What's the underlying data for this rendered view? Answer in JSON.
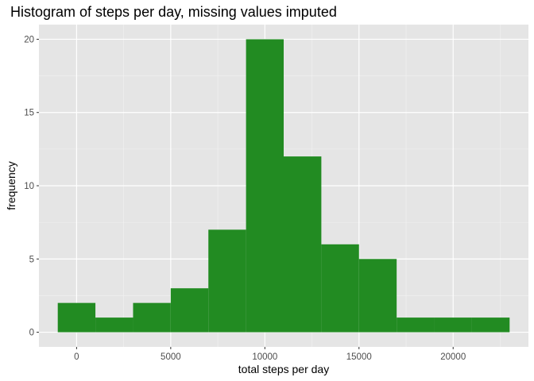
{
  "chart_data": {
    "type": "bar",
    "title": "Histogram of steps per day, missing values imputed",
    "xlabel": "total steps per day",
    "ylabel": "frequency",
    "bin_width": 2000,
    "bins": [
      {
        "x_start": -1000,
        "x_end": 1000,
        "count": 2
      },
      {
        "x_start": 1000,
        "x_end": 3000,
        "count": 1
      },
      {
        "x_start": 3000,
        "x_end": 5000,
        "count": 2
      },
      {
        "x_start": 5000,
        "x_end": 7000,
        "count": 3
      },
      {
        "x_start": 7000,
        "x_end": 9000,
        "count": 7
      },
      {
        "x_start": 9000,
        "x_end": 11000,
        "count": 20
      },
      {
        "x_start": 11000,
        "x_end": 13000,
        "count": 12
      },
      {
        "x_start": 13000,
        "x_end": 15000,
        "count": 6
      },
      {
        "x_start": 15000,
        "x_end": 17000,
        "count": 5
      },
      {
        "x_start": 17000,
        "x_end": 19000,
        "count": 1
      },
      {
        "x_start": 19000,
        "x_end": 21000,
        "count": 1
      },
      {
        "x_start": 21000,
        "x_end": 23000,
        "count": 1
      }
    ],
    "xlim": [
      -2000,
      24000
    ],
    "ylim": [
      -1,
      21
    ],
    "x_ticks": [
      0,
      5000,
      10000,
      15000,
      20000
    ],
    "y_ticks": [
      0,
      5,
      10,
      15,
      20
    ],
    "grid": true,
    "colors": {
      "bar": "#228B22",
      "panel_background": "#E5E5E5",
      "grid_major": "#FFFFFF",
      "grid_minor": "#F2F2F2"
    }
  }
}
